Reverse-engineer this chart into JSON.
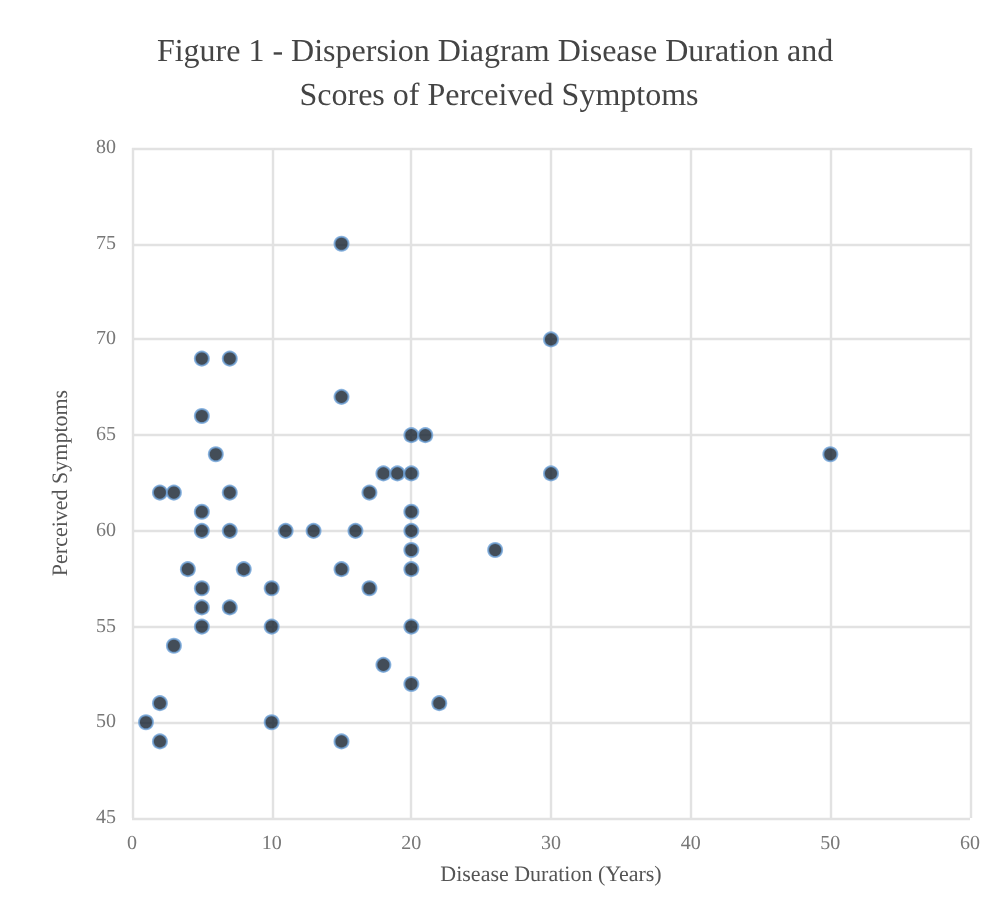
{
  "chart_data": {
    "type": "scatter",
    "title": "Figure 1 - Dispersion Diagram Disease Duration and Scores of Perceived Symptoms",
    "xlabel": "Disease Duration (Years)",
    "ylabel": "Perceived Symptoms",
    "x": [
      5,
      7,
      5,
      6,
      2,
      3,
      7,
      5,
      15,
      15,
      20,
      21,
      18,
      19,
      20,
      30,
      30,
      17,
      20,
      5,
      7,
      11,
      13,
      16,
      20,
      20,
      26,
      20,
      4,
      8,
      15,
      5,
      10,
      17,
      5,
      7,
      5,
      10,
      20,
      3,
      18,
      20,
      22,
      2,
      1,
      10,
      2,
      15,
      50
    ],
    "series": [
      {
        "color": "#14202e",
        "values": [
          69,
          69,
          66,
          64,
          62,
          62,
          62,
          61,
          75,
          67,
          65,
          65,
          63,
          63,
          63,
          70,
          63,
          62,
          61,
          60,
          60,
          60,
          60,
          60,
          60,
          59,
          59,
          58,
          58,
          58,
          58,
          57,
          57,
          57,
          56,
          56,
          55,
          55,
          55,
          54,
          53,
          52,
          51,
          51,
          50,
          50,
          49,
          49,
          64
        ]
      }
    ],
    "xlim": [
      0,
      60
    ],
    "xticks": [
      0,
      10,
      20,
      30,
      40,
      50,
      60
    ],
    "ylim": [
      45,
      80
    ],
    "yticks": [
      45,
      50,
      55,
      60,
      65,
      70,
      75,
      80
    ],
    "grid": true,
    "marker": "circle"
  }
}
